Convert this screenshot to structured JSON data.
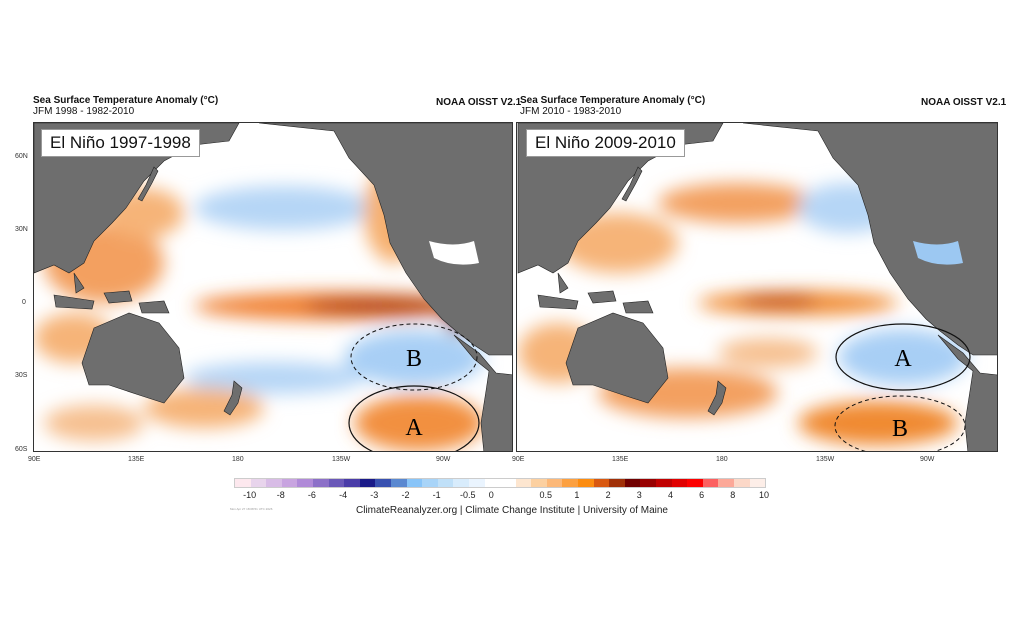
{
  "panels": [
    {
      "title": "Sea Surface Temperature Anomaly (°C)",
      "subtitle": "JFM 1998 - 1982-2010",
      "source": "NOAA OISST V2.1",
      "event": "El Niño 1997-1998",
      "region_a": "A",
      "region_b": "B"
    },
    {
      "title": "Sea Surface Temperature Anomaly (°C)",
      "subtitle": "JFM 2010 - 1983-2010",
      "source": "NOAA OISST V2.1",
      "event": "El Niño 2009-2010",
      "region_a": "A",
      "region_b": "B"
    }
  ],
  "lat_labels": [
    "60N",
    "30N",
    "0",
    "30S",
    "60S"
  ],
  "lon_labels": [
    "90E",
    "135E",
    "180",
    "135W",
    "90W"
  ],
  "colorbar": {
    "ticks": [
      "-10",
      "-8",
      "-6",
      "-4",
      "-3",
      "-2",
      "-1",
      "-0.5",
      "0",
      "0.5",
      "1",
      "2",
      "3",
      "4",
      "6",
      "8",
      "10"
    ],
    "colors": [
      "#fde8ee",
      "#e8d4ec",
      "#d8bce6",
      "#c8a4e0",
      "#b08ad8",
      "#8c70c8",
      "#6a58b8",
      "#4a3ca8",
      "#1a1a88",
      "#3850b0",
      "#5a88d0",
      "#88c4f8",
      "#a8d4f8",
      "#c0e0f8",
      "#d8ecfc",
      "#eaf4fe",
      "#ffffff",
      "#ffffff",
      "#fde6d0",
      "#fcd0a0",
      "#fcb878",
      "#fca040",
      "#fc8c10",
      "#d85810",
      "#a03008",
      "#700000",
      "#980000",
      "#c00000",
      "#e00000",
      "#fc0000",
      "#fc6060",
      "#fca898",
      "#fcd8c8",
      "#fdeee8"
    ]
  },
  "credit": "ClimateReanalyzer.org | Climate Change Institute | University of Maine",
  "timestamp": "Mon Apr 27 18:08:51 UTC 2026",
  "colors": {
    "land": "#6e6e6e",
    "warm": "#f08a30",
    "strong_warm": "#8a1a00",
    "cool": "#a8cff5"
  }
}
